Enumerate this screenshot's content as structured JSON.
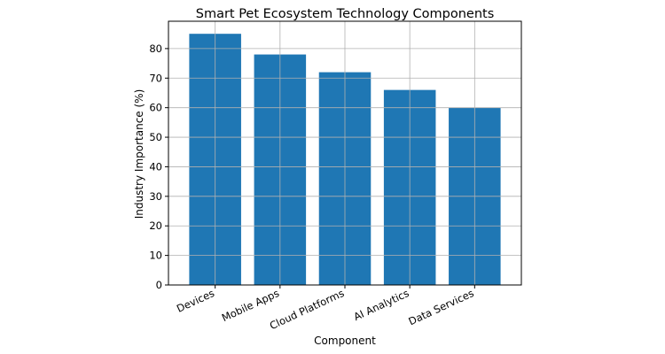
{
  "chart_data": {
    "type": "bar",
    "title": "Smart Pet Ecosystem Technology Components",
    "xlabel": "Component",
    "ylabel": "Industry Importance (%)",
    "categories": [
      "Devices",
      "Mobile Apps",
      "Cloud Platforms",
      "AI Analytics",
      "Data Services"
    ],
    "values": [
      85,
      78,
      72,
      66,
      60
    ],
    "ylim": [
      0,
      89.25
    ],
    "yticks": [
      0,
      10,
      20,
      30,
      40,
      50,
      60,
      70,
      80
    ],
    "grid": true,
    "legend": "none",
    "colors": {
      "bar": "#1f77b4",
      "grid": "#b0b0b0",
      "axes": "#000000"
    }
  }
}
